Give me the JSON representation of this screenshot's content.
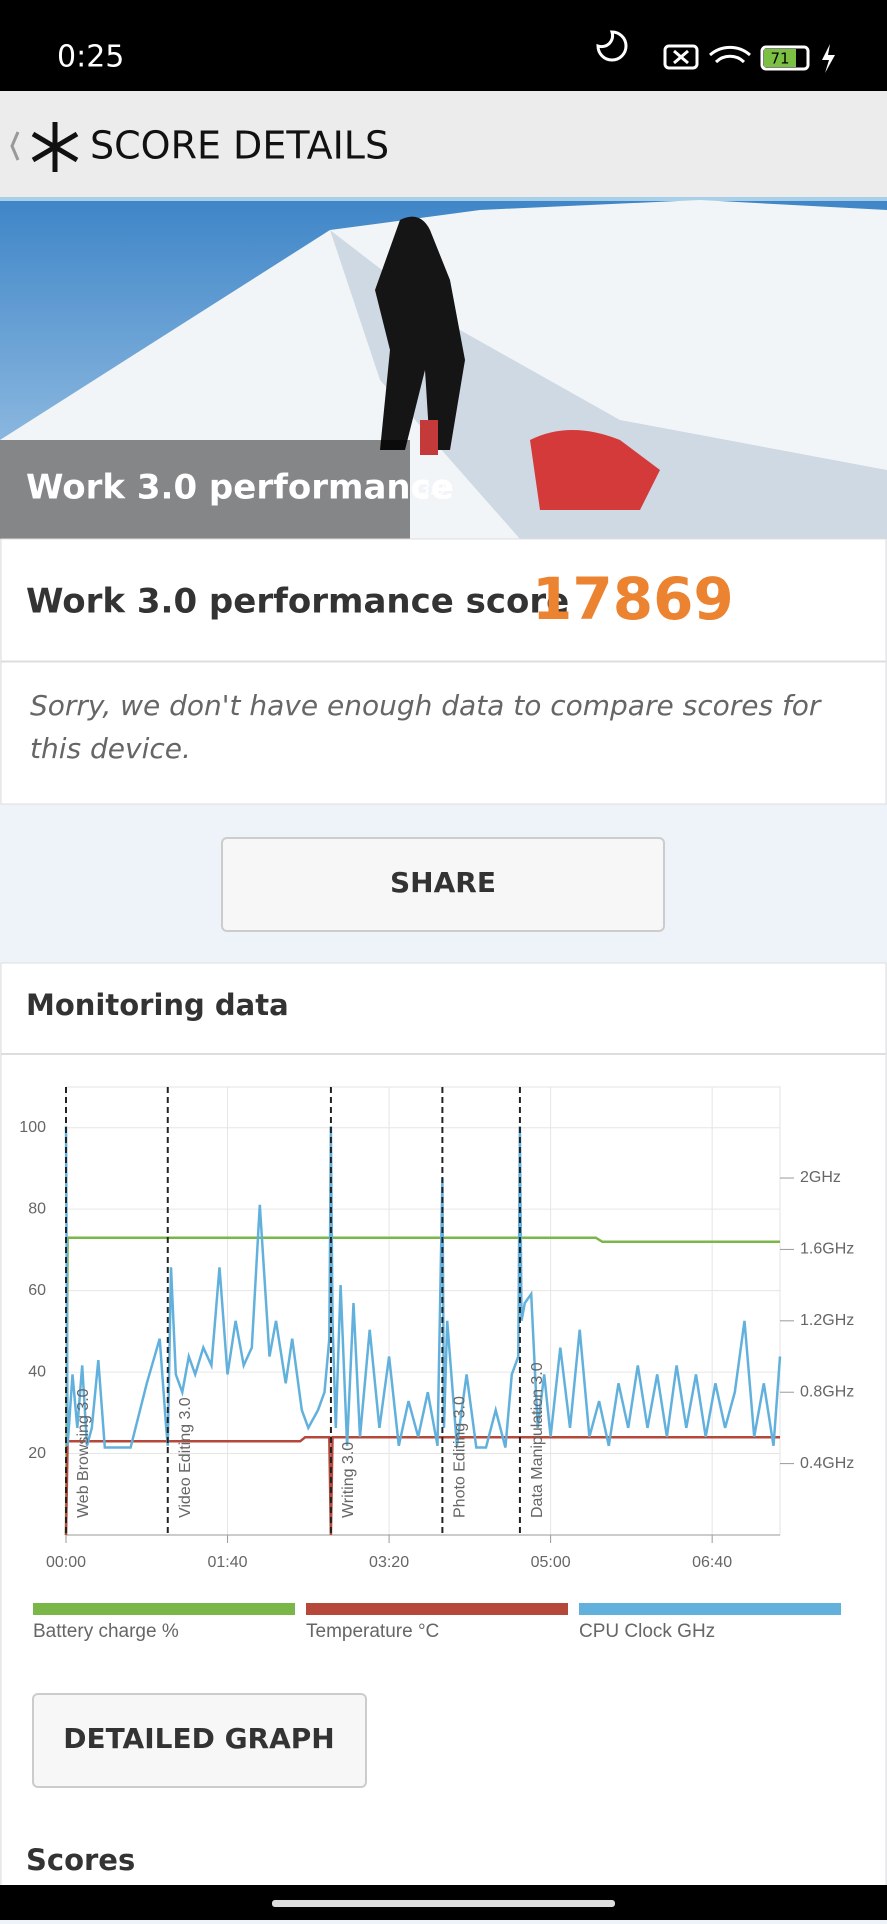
{
  "status_bar": {
    "time": "0:25",
    "battery": "71"
  },
  "header": {
    "title": "SCORE DETAILS"
  },
  "hero": {
    "caption": "Work 3.0 performance",
    "version": "3.0"
  },
  "score": {
    "label": "Work 3.0 performance score",
    "value": 17869
  },
  "message": "Sorry, we don't have enough data to compare scores for this device.",
  "share_button": "SHARE",
  "monitoring": {
    "title": "Monitoring data"
  },
  "chart_data": {
    "type": "line",
    "grid": true,
    "xlim": [
      0,
      442
    ],
    "xticks": [
      {
        "value": 0,
        "label": "00:00"
      },
      {
        "value": 100,
        "label": "01:40"
      },
      {
        "value": 200,
        "label": "03:20"
      },
      {
        "value": 300,
        "label": "05:00"
      },
      {
        "value": 400,
        "label": "06:40"
      }
    ],
    "ylim": [
      0,
      110
    ],
    "yticks": [
      20,
      40,
      60,
      80,
      100
    ],
    "y2lim": [
      0,
      2.51
    ],
    "y2ticks": [
      {
        "value": 0.4,
        "label": "0.4GHz"
      },
      {
        "value": 0.8,
        "label": "0.8GHz"
      },
      {
        "value": 1.2,
        "label": "1.2GHz"
      },
      {
        "value": 1.6,
        "label": "1.6GHz"
      },
      {
        "value": 2,
        "label": "2GHz"
      }
    ],
    "markers": [
      {
        "x": 0,
        "label": "Web Browsing 3.0"
      },
      {
        "x": 63,
        "label": "Video Editing 3.0"
      },
      {
        "x": 164,
        "label": "Writing 3.0"
      },
      {
        "x": 233,
        "label": "Photo Editing 3.0"
      },
      {
        "x": 281,
        "label": "Data Manipulation 3.0"
      }
    ],
    "series": [
      {
        "name": "Battery charge %",
        "color": "#7ab648",
        "x": [
          0,
          1,
          328,
          332,
          442
        ],
        "values": [
          0,
          73,
          73,
          72,
          72
        ]
      },
      {
        "name": "Temperature °C",
        "color": "#b5483b",
        "x": [
          0,
          1,
          145,
          148,
          163,
          164,
          165,
          170,
          442
        ],
        "values": [
          0,
          23,
          23,
          24,
          24,
          0,
          24,
          24,
          24
        ]
      },
      {
        "name": "CPU Clock GHz",
        "color": "#62b1dd",
        "axis": "y2",
        "x": [
          0,
          1,
          4,
          7,
          10,
          13,
          16,
          20,
          24,
          28,
          32,
          40,
          50,
          58,
          62,
          63,
          65,
          68,
          72,
          76,
          80,
          85,
          90,
          95,
          100,
          105,
          110,
          115,
          120,
          126,
          130,
          136,
          140,
          146,
          150,
          156,
          160,
          163,
          164,
          165,
          167,
          170,
          174,
          178,
          182,
          188,
          194,
          200,
          206,
          212,
          218,
          224,
          230,
          233,
          234,
          236,
          242,
          248,
          254,
          260,
          266,
          272,
          276,
          280,
          281,
          282,
          284,
          288,
          292,
          296,
          300,
          306,
          312,
          318,
          324,
          330,
          336,
          342,
          348,
          354,
          360,
          366,
          372,
          378,
          384,
          390,
          396,
          402,
          408,
          414,
          420,
          426,
          432,
          438,
          442
        ],
        "values": [
          2.29,
          0.5,
          0.9,
          0.6,
          0.95,
          0.5,
          0.6,
          0.98,
          0.49,
          0.49,
          0.49,
          0.49,
          0.85,
          1.1,
          0.6,
          0.5,
          1.5,
          0.9,
          0.8,
          1.0,
          0.9,
          1.05,
          0.95,
          1.5,
          0.9,
          1.2,
          0.95,
          1.05,
          1.85,
          1.0,
          1.2,
          0.85,
          1.1,
          0.7,
          0.6,
          0.7,
          0.8,
          1.1,
          2.29,
          1.2,
          0.6,
          1.4,
          0.5,
          1.3,
          0.55,
          1.15,
          0.6,
          1.0,
          0.5,
          0.75,
          0.55,
          0.8,
          0.5,
          2.0,
          0.6,
          1.2,
          0.5,
          0.9,
          0.49,
          0.49,
          0.7,
          0.49,
          0.9,
          1.0,
          2.29,
          1.2,
          1.3,
          1.35,
          0.6,
          0.9,
          0.55,
          1.05,
          0.6,
          1.15,
          0.55,
          0.75,
          0.5,
          0.85,
          0.6,
          0.95,
          0.6,
          0.9,
          0.55,
          0.95,
          0.6,
          0.9,
          0.55,
          0.85,
          0.6,
          0.8,
          1.2,
          0.55,
          0.85,
          0.5,
          1.0
        ]
      }
    ]
  },
  "detailed_button": "DETAILED GRAPH",
  "scores_heading": "Scores"
}
